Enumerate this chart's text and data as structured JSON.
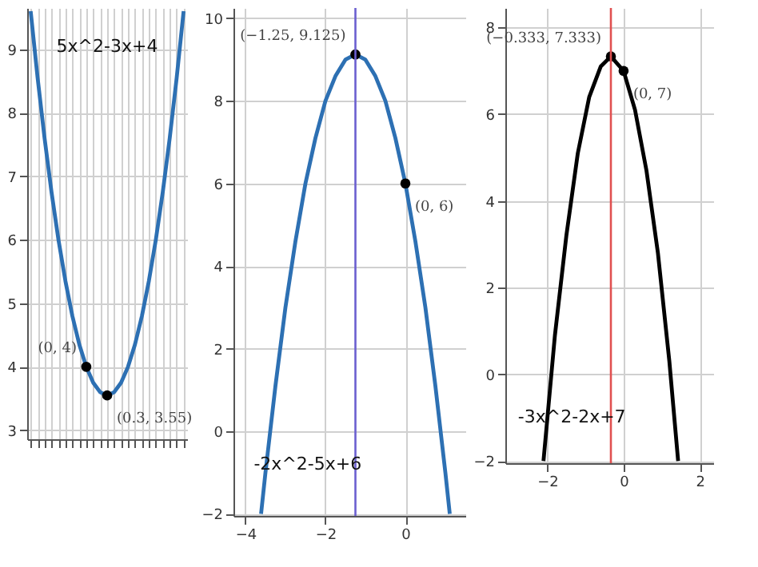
{
  "chart_data": [
    {
      "type": "line",
      "categories": [
        null,
        null,
        null,
        null,
        null,
        null,
        null,
        null,
        null,
        null,
        null,
        null,
        null,
        null,
        null,
        null,
        null,
        null,
        null,
        null,
        null,
        null,
        null
      ],
      "series": [
        {
          "color": "#2d70b3",
          "values": [
            9.6,
            8.55,
            7.6,
            6.75,
            6.0,
            5.35,
            4.8,
            4.35,
            4,
            3.75,
            3.6,
            3.55,
            3.6,
            3.75,
            4.0,
            4.35,
            4.8,
            5.35,
            6,
            6.75,
            7.6,
            8.55,
            9.6
          ]
        },
        {
          "type": "scatter",
          "marker": "circle",
          "color": "#000000",
          "values": [
            null,
            null,
            null,
            null,
            null,
            null,
            null,
            null,
            4,
            null,
            null,
            3.55,
            null,
            null,
            null,
            null,
            null,
            null,
            null,
            null,
            null,
            null,
            null
          ],
          "value_labels": [
            null,
            null,
            null,
            null,
            null,
            null,
            null,
            null,
            "(0, 4)",
            null,
            null,
            "(0.3, 3.55)",
            null,
            null,
            null,
            null,
            null,
            null,
            null,
            null,
            null,
            null,
            null
          ]
        }
      ],
      "ylim": [
        2.86,
        9.65
      ],
      "yticks": [
        3,
        4,
        5,
        6,
        7,
        8,
        9
      ],
      "tick_labels": "y",
      "grid": true,
      "annotations": [
        "5x^2-3x+4"
      ]
    },
    {
      "type": "line",
      "x": [
        -3.61,
        -3.5,
        -3.25,
        -3,
        -2.75,
        -2.5,
        -2.25,
        -2,
        -1.75,
        -1.5,
        -1.25,
        -1,
        -0.75,
        -0.5,
        -0.25,
        0,
        0.25,
        0.5,
        0.75,
        1,
        1.11
      ],
      "series": [
        {
          "color": "#2d70b3",
          "values": [
            -2.0,
            -1,
            1.1,
            3,
            4.6,
            6,
            7.1,
            8,
            8.6,
            9,
            9.125,
            9,
            8.6,
            8,
            7.1,
            6,
            4.6,
            3,
            1.1,
            -1,
            -2.0
          ]
        },
        {
          "type": "scatter",
          "marker": "circle",
          "color": "#000000",
          "x": [
            -1.25,
            0
          ],
          "values": [
            9.125,
            6
          ],
          "value_labels": [
            "(−1.25, 9.125)",
            "(0, 6)"
          ]
        }
      ],
      "xlim": [
        -4.3,
        1.5
      ],
      "ylim": [
        -2.05,
        10.25
      ],
      "xticks": [
        -4,
        -2,
        0
      ],
      "yticks": [
        -2,
        0,
        2,
        4,
        6,
        8,
        10
      ],
      "grid": true,
      "ref_lines": [
        {
          "axis": "x",
          "value": -1.25,
          "color": "#6b5fd0"
        }
      ],
      "annotations": [
        "-2x^2-5x+6"
      ]
    },
    {
      "type": "line",
      "x": [
        -2.1,
        -1.8,
        -1.5,
        -1.2,
        -0.9,
        -0.6,
        -0.333,
        0,
        0.3,
        0.6,
        0.9,
        1.2,
        1.43
      ],
      "series": [
        {
          "color": "#000000",
          "values": [
            -2.0,
            0.9,
            3.2,
            5.1,
            6.4,
            7.1,
            7.333,
            7,
            6.1,
            4.7,
            2.8,
            0.3,
            -2.0
          ]
        },
        {
          "type": "scatter",
          "marker": "circle",
          "color": "#000000",
          "x": [
            -0.333,
            0
          ],
          "values": [
            7.333,
            7
          ],
          "value_labels": [
            "(−0.333, 7.333)",
            "(0, 7)"
          ]
        }
      ],
      "xlim": [
        -3.1,
        2.35
      ],
      "ylim": [
        -2.05,
        8.45
      ],
      "xticks": [
        -2,
        0,
        2
      ],
      "yticks": [
        -2,
        0,
        2,
        4,
        6,
        8
      ],
      "grid": true,
      "ref_lines": [
        {
          "axis": "x",
          "value": -0.333,
          "color": "#e05050"
        }
      ],
      "annotations": [
        "-3x^2-2x+7"
      ]
    }
  ]
}
